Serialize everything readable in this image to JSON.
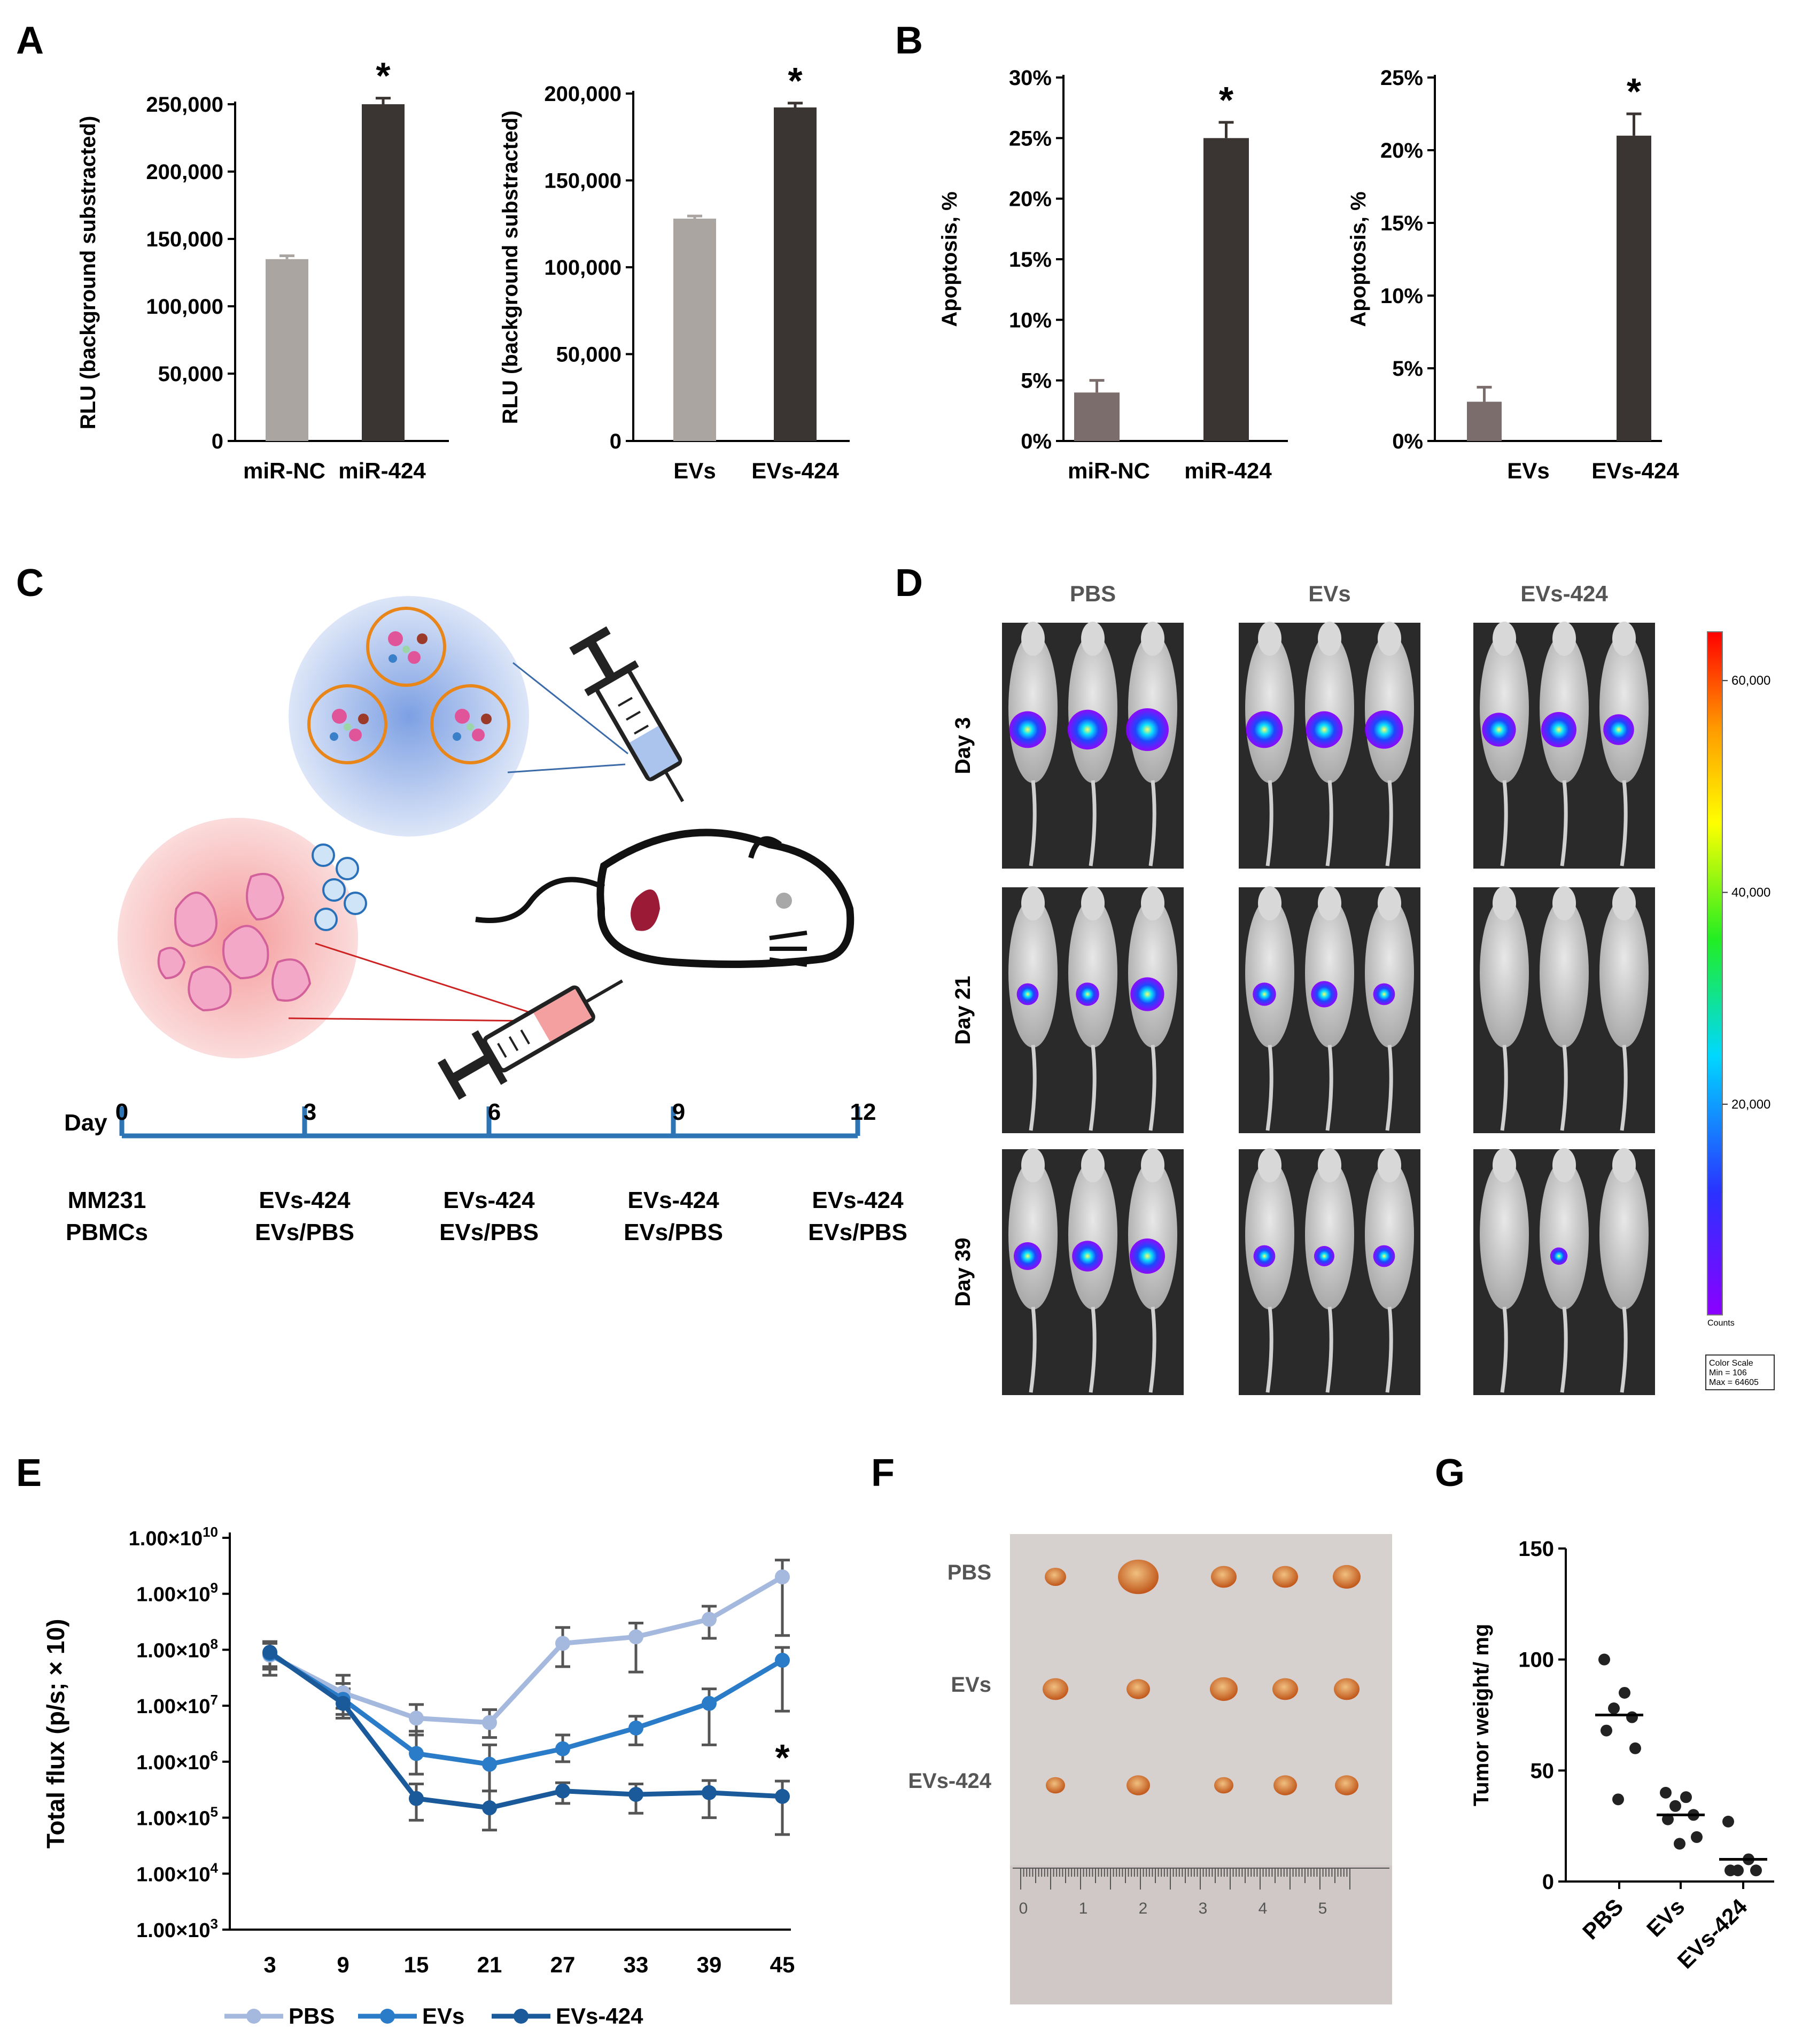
{
  "panels": {
    "A": "A",
    "B": "B",
    "C": "C",
    "D": "D",
    "E": "E",
    "F": "F",
    "G": "G"
  },
  "colors": {
    "gray_bar": "#aba5a2",
    "dark_bar": "#3a3432",
    "b_gray_bar": "#7a6d6b",
    "pbs_line": "#a4b9dd",
    "evs_line": "#2a7cc9",
    "evs424_line": "#1a5a9a",
    "timeline": "#2e75b6"
  },
  "chart_data": [
    {
      "panel": "A",
      "type": "bar",
      "ylabel": "RLU (background substracted)",
      "categories": [
        "miR-NC",
        "miR-424"
      ],
      "values": [
        135000,
        250000
      ],
      "errors": [
        2500,
        4500
      ],
      "ylim": [
        0,
        250000
      ],
      "ticks": [
        "0",
        "50,000",
        "100,000",
        "150,000",
        "200,000",
        "250,000"
      ],
      "tick_values": [
        0,
        50000,
        100000,
        150000,
        200000,
        250000
      ],
      "annotation": "*"
    },
    {
      "panel": "A",
      "type": "bar",
      "ylabel": "RLU (background substracted)",
      "categories": [
        "EVs",
        "EVs-424"
      ],
      "values": [
        128000,
        192000
      ],
      "errors": [
        1500,
        2500
      ],
      "ylim": [
        0,
        200000
      ],
      "ticks": [
        "0",
        "50,000",
        "100,000",
        "150,000",
        "200,000"
      ],
      "tick_values": [
        0,
        50000,
        100000,
        150000,
        200000
      ],
      "annotation": "*"
    },
    {
      "panel": "B",
      "type": "bar",
      "ylabel": "Apoptosis, %",
      "categories": [
        "miR-NC",
        "miR-424"
      ],
      "values": [
        4,
        25
      ],
      "errors": [
        1,
        1.3
      ],
      "ylim": [
        0,
        30
      ],
      "ticks": [
        "0%",
        "5%",
        "10%",
        "15%",
        "20%",
        "25%",
        "30%"
      ],
      "tick_values": [
        0,
        5,
        10,
        15,
        20,
        25,
        30
      ],
      "annotation": "*"
    },
    {
      "panel": "B",
      "type": "bar",
      "ylabel": "Apoptosis, %",
      "categories": [
        "EVs",
        "EVs-424"
      ],
      "values": [
        2.7,
        21
      ],
      "errors": [
        1,
        1.5
      ],
      "ylim": [
        0,
        25
      ],
      "ticks": [
        "0%",
        "5%",
        "10%",
        "15%",
        "20%",
        "25%"
      ],
      "tick_values": [
        0,
        5,
        10,
        15,
        20,
        25
      ],
      "annotation": "*"
    },
    {
      "panel": "E",
      "type": "line",
      "ylabel": "Total flux (p/s; × 10)",
      "yscale": "log",
      "ylim": [
        1000,
        10000000000
      ],
      "ytick_values": [
        1000,
        10000,
        100000,
        1000000,
        10000000,
        100000000,
        1000000000,
        10000000000
      ],
      "ytick_mantissa": "1.00×10",
      "ytick_exponents": [
        "3",
        "4",
        "5",
        "6",
        "7",
        "8",
        "9",
        "10"
      ],
      "x": [
        3,
        9,
        15,
        21,
        27,
        33,
        39,
        45
      ],
      "x_labels": [
        "3",
        "9",
        "15",
        "21",
        "27",
        "33",
        "39",
        "45"
      ],
      "series": [
        {
          "name": "PBS",
          "values": [
            80000000,
            17000000,
            6000000,
            5000000,
            130000000,
            170000000,
            350000000,
            2000000000
          ],
          "err_low": [
            35000000,
            9000000,
            3000000,
            2700000,
            50000000,
            40000000,
            160000000,
            180000000
          ],
          "err_high": [
            140000000,
            35000000,
            10500000,
            8500000,
            250000000,
            300000000,
            600000000,
            4000000000
          ]
        },
        {
          "name": "EVs",
          "values": [
            85000000,
            13000000,
            1400000,
            900000,
            1700000,
            4000000,
            11000000,
            65000000
          ],
          "err_low": [
            45000000,
            7000000,
            600000,
            300000,
            1000000,
            2000000,
            2000000,
            8000000
          ],
          "err_high": [
            130000000,
            25000000,
            3500000,
            2000000,
            3000000,
            6500000,
            20000000,
            110000000
          ]
        },
        {
          "name": "EVs-424",
          "values": [
            90000000,
            11000000,
            220000,
            150000,
            300000,
            260000,
            280000,
            240000
          ],
          "err_low": [
            50000000,
            6000000,
            90000,
            60000,
            180000,
            120000,
            100000,
            50000
          ],
          "err_high": [
            130000000,
            20000000,
            400000,
            300000,
            420000,
            400000,
            460000,
            450000
          ]
        }
      ],
      "annotation": "*"
    },
    {
      "panel": "G",
      "type": "scatter",
      "ylabel": "Tumor weight/ mg",
      "categories": [
        "PBS",
        "EVs",
        "EVs-424"
      ],
      "points": [
        [
          100,
          85,
          78,
          74,
          68,
          60,
          37
        ],
        [
          40,
          38,
          34,
          30,
          28,
          20,
          17
        ],
        [
          27,
          10,
          5,
          5,
          5
        ]
      ],
      "medians": [
        75,
        30,
        10
      ],
      "ylim": [
        0,
        150
      ],
      "ticks": [
        "0",
        "50",
        "100",
        "150"
      ],
      "tick_values": [
        0,
        50,
        100,
        150
      ]
    }
  ],
  "panel_c": {
    "timeline_start": "Day",
    "days": [
      "0",
      "3",
      "6",
      "9",
      "12"
    ],
    "labels": [
      [
        "MM231",
        "PBMCs"
      ],
      [
        "EVs-424",
        "EVs/PBS"
      ],
      [
        "EVs-424",
        "EVs/PBS"
      ],
      [
        "EVs-424",
        "EVs/PBS"
      ],
      [
        "EVs-424",
        "EVs/PBS"
      ]
    ]
  },
  "panel_d": {
    "columns": [
      "PBS",
      "EVs",
      "EVs-424"
    ],
    "rows": [
      "Day 3",
      "Day 21",
      "Day 39"
    ],
    "scale_ticks": [
      "60,000",
      "40,000",
      "20,000"
    ],
    "scale_values": [
      60000,
      40000,
      20000
    ],
    "scale_label": "Counts",
    "scale_box": [
      "Color Scale",
      "Min = 106",
      "Max = 64605"
    ],
    "signal_levels": [
      [
        0.8,
        0.9,
        1.0,
        0.8,
        0.8,
        0.85,
        0.7,
        0.75,
        0.6
      ],
      [
        0.3,
        0.35,
        0.7,
        0.35,
        0.45,
        0.3,
        0,
        0,
        0
      ],
      [
        0.5,
        0.6,
        0.75,
        0.3,
        0.25,
        0.3,
        0,
        0.15,
        0
      ]
    ]
  },
  "panel_f": {
    "rows": [
      "PBS",
      "EVs",
      "EVs-424"
    ],
    "ruler_numbers": [
      "0",
      "1",
      "2",
      "3",
      "4",
      "5"
    ]
  }
}
